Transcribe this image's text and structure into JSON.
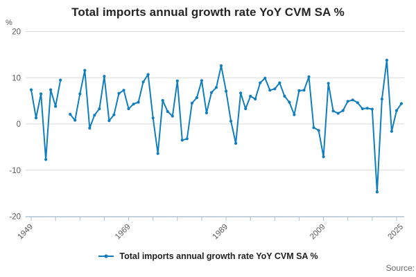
{
  "title": "Total imports annual growth rate YoY CVM SA %",
  "y_axis": {
    "unit": "%",
    "ticks": [
      20,
      10,
      0,
      -10,
      -20
    ],
    "min": -20,
    "max": 20
  },
  "x_axis": {
    "start": 1949,
    "end": 2025,
    "tick_years": [
      1949,
      1954,
      1959,
      1964,
      1969,
      1974,
      1979,
      1984,
      1989,
      1994,
      1999,
      2004,
      2009,
      2014,
      2019,
      2024
    ],
    "labels": [
      "1949",
      "1969",
      "1989",
      "2009",
      "2025"
    ],
    "label_years": [
      1949,
      1969,
      1989,
      2009,
      2025
    ]
  },
  "legend": {
    "label": "Total imports annual growth rate YoY CVM SA %",
    "marker": "line-with-dot"
  },
  "source_label": "Source:",
  "colors": {
    "line": "#0f7dbe",
    "grid": "#d9d9d9",
    "axis": "#b6c8d8",
    "tick_text": "#595959",
    "title_text": "#252525"
  },
  "chart_data": {
    "type": "line",
    "title": "Total imports annual growth rate YoY CVM SA %",
    "xlabel": "",
    "ylabel": "%",
    "ylim": [
      -20,
      20
    ],
    "xlim": [
      1949,
      2025
    ],
    "grid": true,
    "legend_position": "bottom",
    "marker": "dot",
    "note": "null value = gap in line (1956)",
    "x": [
      1949,
      1950,
      1951,
      1952,
      1953,
      1954,
      1955,
      1956,
      1957,
      1958,
      1959,
      1960,
      1961,
      1962,
      1963,
      1964,
      1965,
      1966,
      1967,
      1968,
      1969,
      1970,
      1971,
      1972,
      1973,
      1974,
      1975,
      1976,
      1977,
      1978,
      1979,
      1980,
      1981,
      1982,
      1983,
      1984,
      1985,
      1986,
      1987,
      1988,
      1989,
      1990,
      1991,
      1992,
      1993,
      1994,
      1995,
      1996,
      1997,
      1998,
      1999,
      2000,
      2001,
      2002,
      2003,
      2004,
      2005,
      2006,
      2007,
      2008,
      2009,
      2010,
      2011,
      2012,
      2013,
      2014,
      2015,
      2016,
      2017,
      2018,
      2019,
      2020,
      2021,
      2022,
      2023,
      2024,
      2025
    ],
    "values": [
      7.4,
      1.3,
      6.5,
      -7.7,
      7.4,
      3.8,
      9.5,
      null,
      2.1,
      0.8,
      6.5,
      11.6,
      -0.9,
      1.9,
      3.3,
      10.3,
      0.7,
      2.0,
      6.6,
      7.3,
      3.3,
      4.3,
      4.7,
      9.1,
      10.7,
      1.3,
      -6.4,
      5.1,
      2.7,
      1.7,
      9.3,
      -3.5,
      -3.2,
      4.5,
      5.7,
      9.4,
      2.4,
      6.8,
      7.9,
      12.6,
      7.1,
      0.6,
      -4.2,
      6.7,
      3.3,
      6.0,
      5.4,
      8.9,
      9.9,
      7.3,
      7.6,
      8.9,
      6.0,
      4.7,
      2.0,
      7.2,
      7.3,
      10.2,
      -0.8,
      -1.4,
      -7.1,
      8.8,
      2.8,
      2.3,
      2.9,
      4.9,
      5.2,
      4.6,
      3.3,
      3.4,
      3.2,
      -14.7,
      5.4,
      13.8,
      -1.6,
      2.9,
      4.4
    ]
  }
}
